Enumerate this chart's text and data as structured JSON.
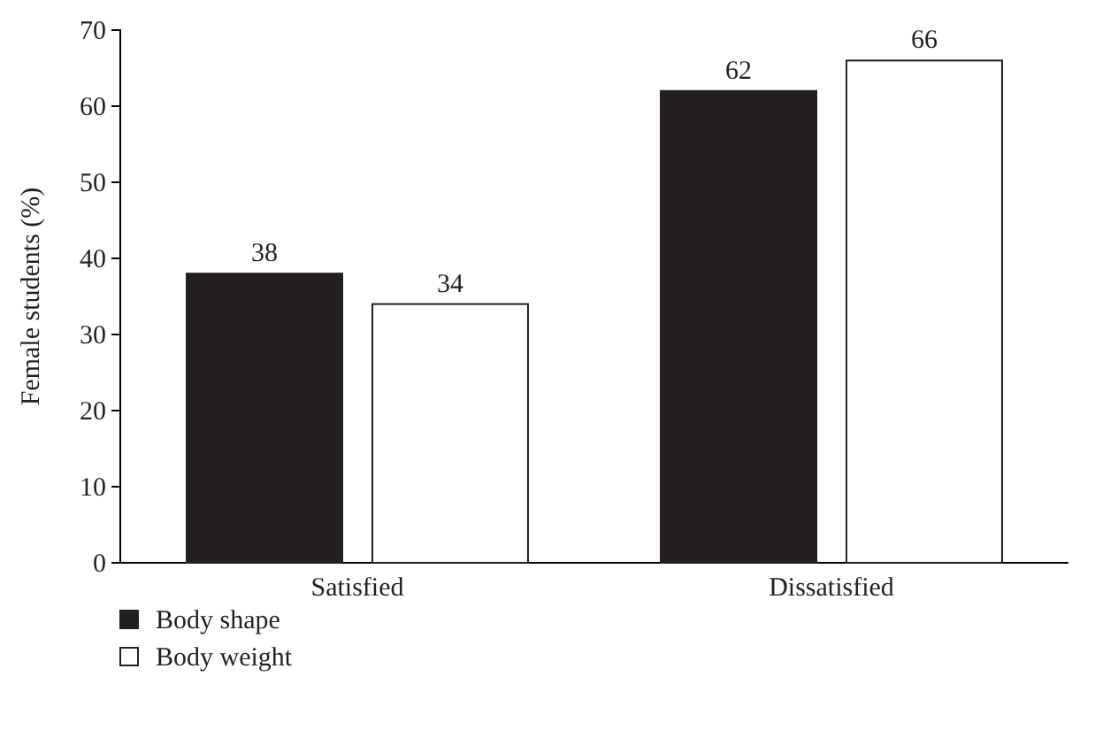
{
  "chart_data": {
    "type": "bar",
    "ylabel": "Female students (%)",
    "categories": [
      "Satisfied",
      "Dissatisfied"
    ],
    "series": [
      {
        "name": "Body shape",
        "color": "#231f20",
        "values": [
          38,
          62
        ]
      },
      {
        "name": "Body weight",
        "color": "#ffffff",
        "values": [
          34,
          66
        ]
      }
    ],
    "ylim": [
      0,
      70
    ],
    "yticks": [
      0,
      10,
      20,
      30,
      40,
      50,
      60,
      70
    ],
    "grid": false,
    "legend": "bottom",
    "data_labels": true
  }
}
